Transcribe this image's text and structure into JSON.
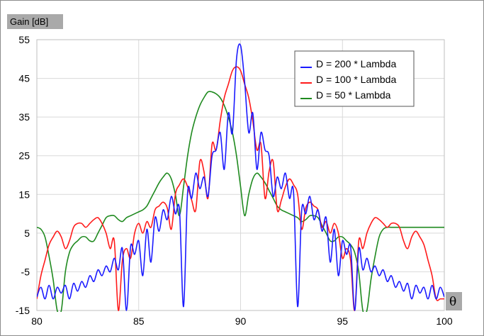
{
  "chart_data": {
    "type": "line",
    "title": "",
    "xlabel": "θ",
    "ylabel": "Gain [dB]",
    "xlim": [
      80,
      100
    ],
    "ylim": [
      -15,
      55
    ],
    "x_ticks": [
      "80",
      "85",
      "90",
      "95",
      "100"
    ],
    "y_ticks": [
      "55",
      "45",
      "35",
      "25",
      "15",
      "5",
      "-5",
      "-15"
    ],
    "grid": true,
    "legend_position": "top-right",
    "series": [
      {
        "name": "D = 200 * Lambda",
        "color": "#1a1aff",
        "x": [
          80.0,
          80.2,
          80.4,
          80.6,
          80.8,
          81.0,
          81.2,
          81.4,
          81.6,
          81.8,
          82.0,
          82.2,
          82.4,
          82.6,
          82.8,
          83.0,
          83.2,
          83.4,
          83.6,
          83.8,
          84.0,
          84.2,
          84.4,
          84.6,
          84.8,
          85.0,
          85.2,
          85.4,
          85.6,
          85.8,
          86.0,
          86.2,
          86.4,
          86.6,
          86.8,
          87.0,
          87.2,
          87.4,
          87.6,
          87.8,
          88.0,
          88.2,
          88.4,
          88.6,
          88.8,
          89.0,
          89.2,
          89.4,
          89.6,
          89.8,
          90.0,
          90.2,
          90.4,
          90.6,
          90.8,
          91.0,
          91.2,
          91.4,
          91.6,
          91.8,
          92.0,
          92.2,
          92.4,
          92.6,
          92.8,
          93.0,
          93.2,
          93.4,
          93.6,
          93.8,
          94.0,
          94.2,
          94.4,
          94.6,
          94.8,
          95.0,
          95.2,
          95.4,
          95.6,
          95.8,
          96.0,
          96.2,
          96.4,
          96.6,
          96.8,
          97.0,
          97.2,
          97.4,
          97.6,
          97.8,
          98.0,
          98.2,
          98.4,
          98.6,
          98.8,
          99.0,
          99.2,
          99.4,
          99.6,
          99.8,
          100.0
        ],
        "values": [
          -11.5,
          -9,
          -12,
          -8.5,
          -12,
          -9,
          -10.5,
          -8.5,
          -12,
          -8,
          -10,
          -7.5,
          -9,
          -6,
          -7.5,
          -4.5,
          -6,
          -3.5,
          -5,
          -1.5,
          -4.5,
          1,
          -15,
          1.5,
          -0.5,
          3,
          -6,
          6,
          -2.5,
          9,
          5.5,
          11,
          8.5,
          14.5,
          10,
          11,
          -14,
          15.5,
          14,
          20.5,
          16.5,
          19.5,
          14.5,
          25,
          26.5,
          31,
          21.5,
          36,
          31,
          50,
          53.5,
          44,
          31,
          36,
          21.5,
          31,
          26.5,
          25,
          14.5,
          19.5,
          16.5,
          20.5,
          14,
          15.5,
          -14,
          11,
          10,
          14.5,
          8.5,
          11,
          5.5,
          9,
          -2.5,
          6,
          -6,
          3,
          -0.5,
          1.5,
          -15,
          1,
          -4.5,
          -1.5,
          -5,
          -3.5,
          -6,
          -4.5,
          -7.5,
          -6,
          -9,
          -7.5,
          -10,
          -8,
          -12,
          -8.5,
          -10.5,
          -9,
          -12,
          -8.5,
          -12,
          -9,
          -11.5
        ]
      },
      {
        "name": "D = 100 * Lambda",
        "color": "#ff1a1a",
        "x": [
          80.0,
          80.2,
          80.4,
          80.6,
          80.8,
          81.0,
          81.2,
          81.4,
          81.6,
          81.8,
          82.0,
          82.2,
          82.4,
          82.6,
          82.8,
          83.0,
          83.2,
          83.4,
          83.6,
          83.8,
          84.0,
          84.2,
          84.4,
          84.6,
          84.8,
          85.0,
          85.2,
          85.4,
          85.6,
          85.8,
          86.0,
          86.2,
          86.4,
          86.6,
          86.8,
          87.0,
          87.2,
          87.4,
          87.6,
          87.8,
          88.0,
          88.2,
          88.4,
          88.6,
          88.8,
          89.0,
          89.2,
          89.4,
          89.6,
          89.8,
          90.0,
          90.2,
          90.4,
          90.6,
          90.8,
          91.0,
          91.2,
          91.4,
          91.6,
          91.8,
          92.0,
          92.2,
          92.4,
          92.6,
          92.8,
          93.0,
          93.2,
          93.4,
          93.6,
          93.8,
          94.0,
          94.2,
          94.4,
          94.6,
          94.8,
          95.0,
          95.2,
          95.4,
          95.6,
          95.8,
          96.0,
          96.2,
          96.4,
          96.6,
          96.8,
          97.0,
          97.2,
          97.4,
          97.6,
          97.8,
          98.0,
          98.2,
          98.4,
          98.6,
          98.8,
          99.0,
          99.2,
          99.4,
          99.6,
          99.8,
          100.0
        ],
        "values": [
          -12,
          -6,
          -2,
          2,
          4,
          5.5,
          4,
          1,
          3,
          6.5,
          7.5,
          7.5,
          6.5,
          7.5,
          8.5,
          9,
          7.5,
          5,
          1,
          3,
          -15,
          -2,
          1,
          -1.5,
          5,
          7.5,
          5,
          8,
          6.5,
          11,
          12,
          13,
          11.5,
          6,
          15,
          17.5,
          19,
          17,
          13.5,
          11,
          23.5,
          21,
          14,
          28,
          26.5,
          34,
          40,
          43.5,
          47,
          48,
          47,
          43.5,
          40,
          34,
          26.5,
          28,
          14,
          21,
          23.5,
          11,
          13.5,
          17,
          19,
          17.5,
          15,
          6,
          11.5,
          13,
          12,
          11,
          6.5,
          8,
          5,
          7.5,
          5,
          -1.5,
          1,
          -2,
          -15,
          3,
          1,
          5,
          7.5,
          9,
          8.5,
          7.5,
          6.5,
          7.5,
          7.5,
          6.5,
          3,
          1,
          4,
          5.5,
          4,
          2,
          -2,
          -6,
          -12,
          -12,
          -12
        ]
      },
      {
        "name": "D = 50 * Lambda",
        "color": "#1f8a1f",
        "x": [
          80.0,
          80.2,
          80.4,
          80.6,
          80.8,
          81.0,
          81.2,
          81.4,
          81.6,
          81.8,
          82.0,
          82.2,
          82.4,
          82.6,
          82.8,
          83.0,
          83.2,
          83.4,
          83.6,
          83.8,
          84.0,
          84.2,
          84.4,
          84.6,
          84.8,
          85.0,
          85.2,
          85.4,
          85.6,
          85.8,
          86.0,
          86.2,
          86.4,
          86.6,
          86.8,
          87.0,
          87.2,
          87.4,
          87.6,
          87.8,
          88.0,
          88.2,
          88.4,
          88.6,
          88.8,
          89.0,
          89.2,
          89.4,
          89.6,
          89.8,
          90.0,
          90.2,
          90.4,
          90.6,
          90.8,
          91.0,
          91.2,
          91.4,
          91.6,
          91.8,
          92.0,
          92.2,
          92.4,
          92.6,
          92.8,
          93.0,
          93.2,
          93.4,
          93.6,
          93.8,
          94.0,
          94.2,
          94.4,
          94.6,
          94.8,
          95.0,
          95.2,
          95.4,
          95.6,
          95.8,
          96.0,
          96.2,
          96.4,
          96.6,
          96.8,
          97.0,
          97.2,
          97.4,
          97.6,
          97.8,
          98.0,
          98.2,
          98.4,
          98.6,
          98.8,
          99.0,
          99.2,
          99.4,
          99.6,
          99.8,
          100.0
        ],
        "values": [
          6.5,
          6,
          4,
          -1,
          -7,
          -15,
          -15,
          -5,
          0,
          2,
          3,
          4,
          4,
          3,
          3,
          5,
          7,
          9,
          9.5,
          9.5,
          8.5,
          8,
          9,
          9.5,
          10,
          10.5,
          11,
          12,
          14,
          16,
          18,
          19.5,
          20.5,
          19,
          15,
          9.5,
          17,
          25,
          31,
          35,
          38,
          40,
          41.5,
          41.5,
          41,
          40,
          38,
          35,
          31,
          25,
          17,
          9.5,
          15,
          19,
          20.5,
          19.5,
          18,
          16,
          14,
          12,
          11,
          10.5,
          10,
          9.5,
          9,
          8,
          8.5,
          9.5,
          9.5,
          9,
          7,
          5,
          3,
          3,
          4,
          4,
          3,
          2,
          0,
          -5,
          -15,
          -15,
          -7,
          -1,
          4,
          6,
          6.5,
          6.5,
          6.5,
          6.5,
          6.5,
          6.5,
          6.5,
          6.5,
          6.5,
          6.5,
          6.5,
          6.5,
          6.5,
          6.5,
          6.5
        ]
      }
    ]
  }
}
